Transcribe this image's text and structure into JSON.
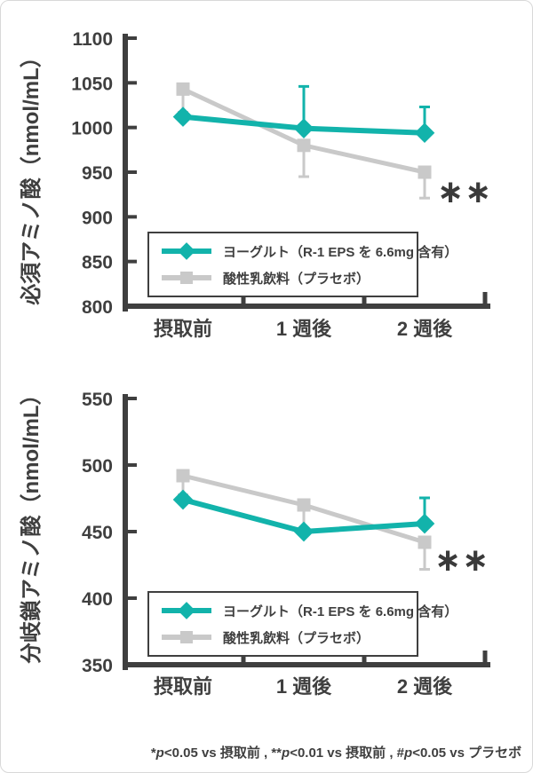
{
  "page": {
    "background": "#ffffff",
    "card_border_color": "#d8d8d8"
  },
  "colors": {
    "teal": "#12b3ab",
    "gray": "#c9c9c9",
    "axis": "#3f3f3f",
    "text": "#3f3f3f"
  },
  "chart_data": [
    {
      "type": "line",
      "title": "",
      "ylabel": "必須アミノ酸（nmol/mL）",
      "xlabel": "",
      "categories": [
        "摂取前",
        "1 週後",
        "2 週後"
      ],
      "ylim": [
        800,
        1100
      ],
      "yticks": [
        800,
        850,
        900,
        950,
        1000,
        1050,
        1100
      ],
      "grid": false,
      "legend_position": "inside-bottom-left",
      "series": [
        {
          "name": "酸性乳飲料（プラセボ）",
          "key": "placebo",
          "color_key": "gray",
          "marker": "square",
          "values": [
            1043,
            980,
            950
          ],
          "err_up": [
            0,
            0,
            0
          ],
          "err_down": [
            27,
            36,
            30
          ]
        },
        {
          "name": "ヨーグルト（R-1 EPS を 6.6mg 含有）",
          "key": "yogurt",
          "color_key": "teal",
          "marker": "diamond",
          "values": [
            1012,
            999,
            994
          ],
          "err_up": [
            0,
            48,
            30
          ],
          "err_down": [
            0,
            0,
            0
          ]
        }
      ],
      "annotation": {
        "text": "**",
        "glyph": "∗∗",
        "category_index": 2,
        "series_key": "placebo"
      }
    },
    {
      "type": "line",
      "title": "",
      "ylabel": "分岐鎖アミノ酸（nmol/mL）",
      "xlabel": "",
      "categories": [
        "摂取前",
        "1 週後",
        "2 週後"
      ],
      "ylim": [
        350,
        550
      ],
      "yticks": [
        350,
        400,
        450,
        500,
        550
      ],
      "grid": false,
      "legend_position": "inside-bottom-left",
      "series": [
        {
          "name": "酸性乳飲料（プラセボ）",
          "key": "placebo",
          "color_key": "gray",
          "marker": "square",
          "values": [
            492,
            470,
            442
          ],
          "err_up": [
            0,
            0,
            0
          ],
          "err_down": [
            15,
            18,
            21
          ]
        },
        {
          "name": "ヨーグルト（R-1 EPS を 6.6mg 含有）",
          "key": "yogurt",
          "color_key": "teal",
          "marker": "diamond",
          "values": [
            474,
            450,
            456
          ],
          "err_up": [
            0,
            0,
            20
          ],
          "err_down": [
            0,
            0,
            0
          ]
        }
      ],
      "annotation": {
        "text": "**",
        "glyph": "∗∗",
        "category_index": 2,
        "series_key": "placebo"
      }
    }
  ],
  "footer": {
    "text": "*p<0.05 vs 摂取前 , **p<0.01 vs 摂取前 , #p<0.05 vs プラセボ",
    "parts": [
      {
        "text": "*",
        "italic": false
      },
      {
        "text": "p",
        "italic": true
      },
      {
        "text": "<0.05 vs 摂取前 , ",
        "italic": false
      },
      {
        "text": "**",
        "italic": false
      },
      {
        "text": "p",
        "italic": true
      },
      {
        "text": "<0.01 vs 摂取前 , ",
        "italic": false
      },
      {
        "text": "#",
        "italic": false
      },
      {
        "text": "p",
        "italic": true
      },
      {
        "text": "<0.05 vs プラセボ",
        "italic": false
      }
    ]
  }
}
